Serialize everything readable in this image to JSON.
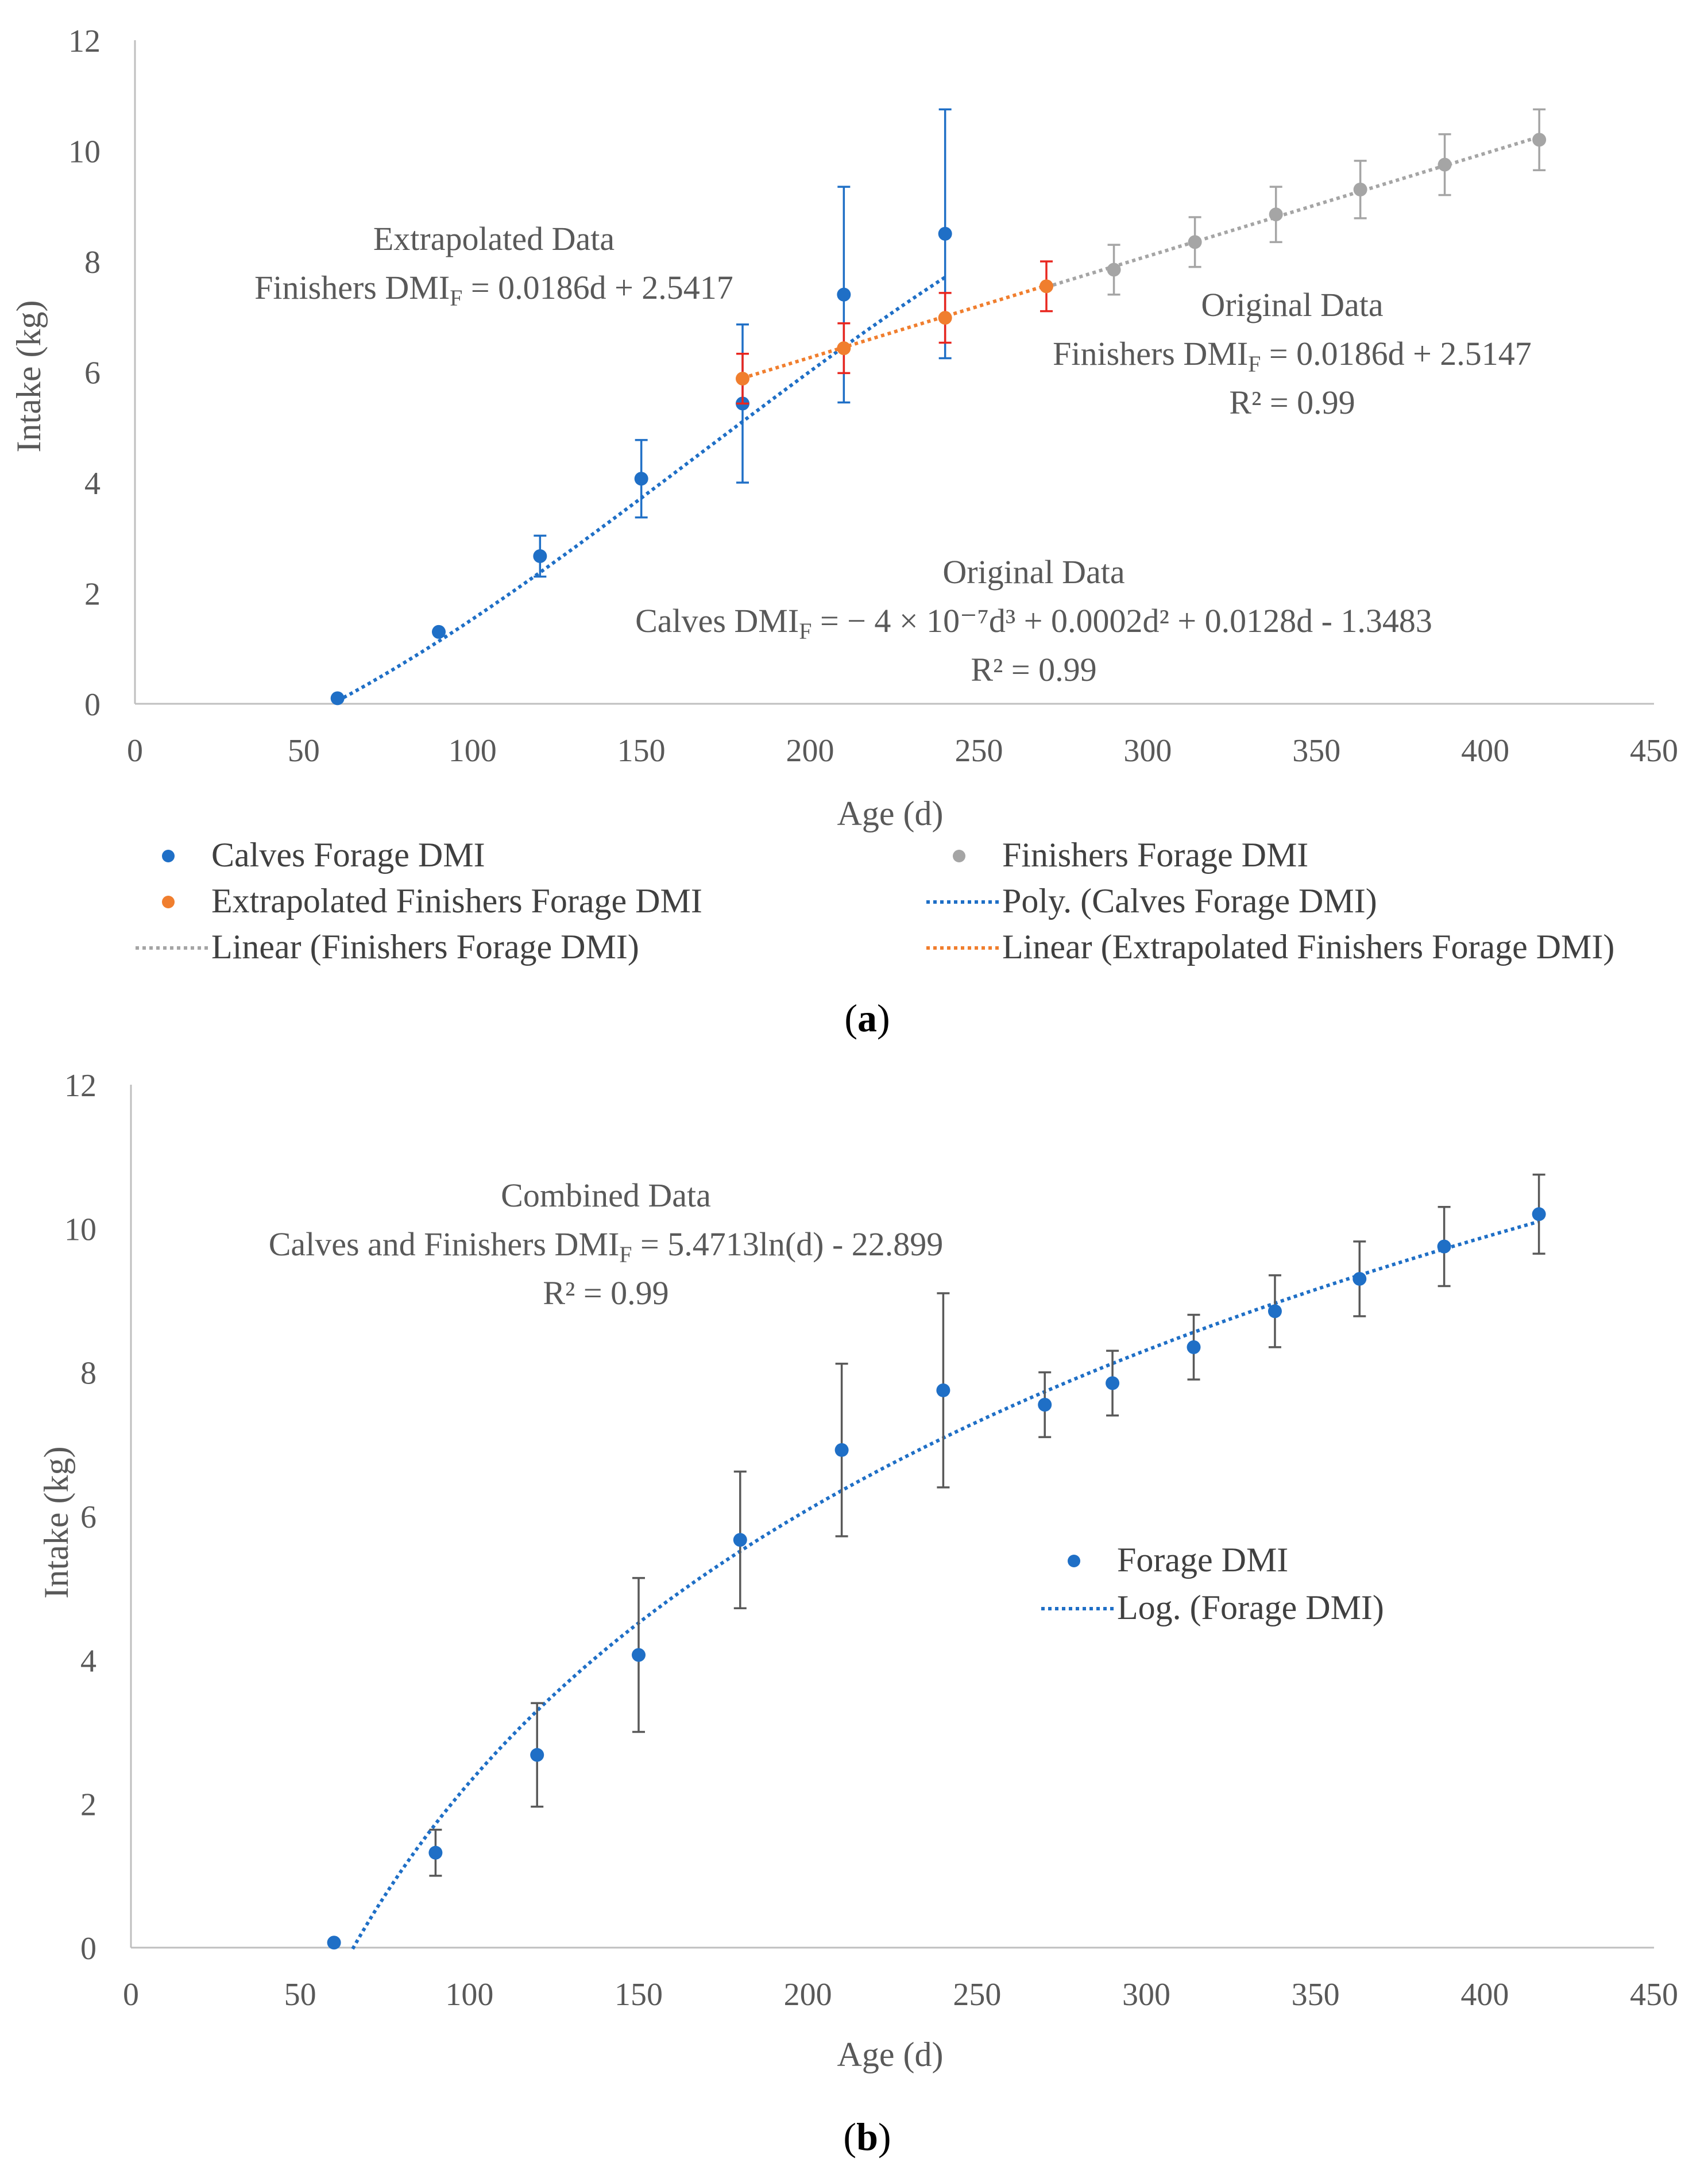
{
  "chart_data": [
    {
      "type": "scatter",
      "panel_label": "a",
      "xlabel": "Age (d)",
      "ylabel": "Intake (kg)",
      "xlim": [
        0,
        450
      ],
      "ylim": [
        0,
        12
      ],
      "xticks": [
        0,
        50,
        100,
        150,
        200,
        250,
        300,
        350,
        400,
        450
      ],
      "yticks": [
        0,
        2,
        4,
        6,
        8,
        10,
        12
      ],
      "grid": false,
      "legend_position": "bottom",
      "series": [
        {
          "name": "Calves Forage DMI",
          "color": "#1f6fc6",
          "x": [
            60,
            90,
            120,
            150,
            180,
            210,
            240
          ],
          "y": [
            0.1,
            1.3,
            2.67,
            4.07,
            5.43,
            7.4,
            8.5
          ],
          "err": [
            0,
            0,
            0.37,
            0.7,
            1.43,
            1.95,
            2.25
          ]
        },
        {
          "name": "Finishers Forage DMI",
          "color": "#a5a5a5",
          "x": [
            290,
            314,
            338,
            363,
            388,
            416
          ],
          "y": [
            7.85,
            8.35,
            8.85,
            9.3,
            9.75,
            10.2
          ],
          "err": [
            0.45,
            0.45,
            0.5,
            0.52,
            0.55,
            0.55
          ]
        },
        {
          "name": "Extrapolated Finishers Forage DMI",
          "color": "#f07e2e",
          "errcolor": "#e8261f",
          "x": [
            180,
            210,
            240,
            270
          ],
          "y": [
            5.88,
            6.43,
            6.98,
            7.55
          ],
          "err": [
            0.45,
            0.45,
            0.45,
            0.45
          ]
        }
      ],
      "trendlines": [
        {
          "name": "Poly. (Calves Forage DMI)",
          "color": "#1f6fc6",
          "type": "poly3",
          "coef": [
            -4e-07,
            0.0002,
            0.0128,
            -1.3483
          ],
          "x_range": [
            60,
            240
          ]
        },
        {
          "name": "Linear (Finishers Forage DMI)",
          "color": "#a5a5a5",
          "type": "linear",
          "slope": 0.0186,
          "intercept": 2.5147,
          "x_range": [
            270,
            416
          ]
        },
        {
          "name": "Linear (Extrapolated Finishers Forage DMI)",
          "color": "#f07e2e",
          "type": "linear",
          "slope": 0.0186,
          "intercept": 2.5417,
          "x_range": [
            180,
            270
          ]
        }
      ],
      "annotations": [
        {
          "lines": [
            "Extrapolated Data",
            "Finishers DMI|F| = 0.0186d + 2.5417"
          ]
        },
        {
          "lines": [
            "Original Data",
            "Finishers DMI|F| = 0.0186d + 2.5147",
            "R² = 0.99"
          ]
        },
        {
          "lines": [
            "Original Data",
            "Calves DMI|F| = − 4 × 10⁻⁷d³ + 0.0002d² + 0.0128d - 1.3483",
            "R² = 0.99"
          ]
        }
      ]
    },
    {
      "type": "scatter",
      "panel_label": "b",
      "xlabel": "Age (d)",
      "ylabel": "Intake (kg)",
      "xlim": [
        0,
        450
      ],
      "ylim": [
        0,
        12
      ],
      "xticks": [
        0,
        50,
        100,
        150,
        200,
        250,
        300,
        350,
        400,
        450
      ],
      "yticks": [
        0,
        2,
        4,
        6,
        8,
        10,
        12
      ],
      "grid": false,
      "legend_position": "center-right",
      "series": [
        {
          "name": "Forage DMI",
          "color": "#1f6fc6",
          "errcolor": "#595959",
          "x": [
            60,
            90,
            120,
            150,
            180,
            210,
            240,
            270,
            290,
            314,
            338,
            363,
            388,
            416
          ],
          "y": [
            0.07,
            1.32,
            2.68,
            4.07,
            5.67,
            6.92,
            7.75,
            7.55,
            7.85,
            8.35,
            8.85,
            9.3,
            9.75,
            10.2
          ],
          "err": [
            0,
            0.32,
            0.72,
            1.07,
            0.95,
            1.2,
            1.35,
            0.45,
            0.45,
            0.45,
            0.5,
            0.52,
            0.55,
            0.55
          ]
        }
      ],
      "trendlines": [
        {
          "name": "Log. (Forage DMI)",
          "color": "#1f6fc6",
          "type": "log",
          "a": 5.4713,
          "b": -22.899,
          "x_range": [
            65.5,
            416
          ]
        }
      ],
      "annotations": [
        {
          "lines": [
            "Combined Data",
            "Calves and Finishers DMI|F| = 5.4713ln(d) - 22.899",
            "R² = 0.99"
          ]
        }
      ]
    }
  ]
}
